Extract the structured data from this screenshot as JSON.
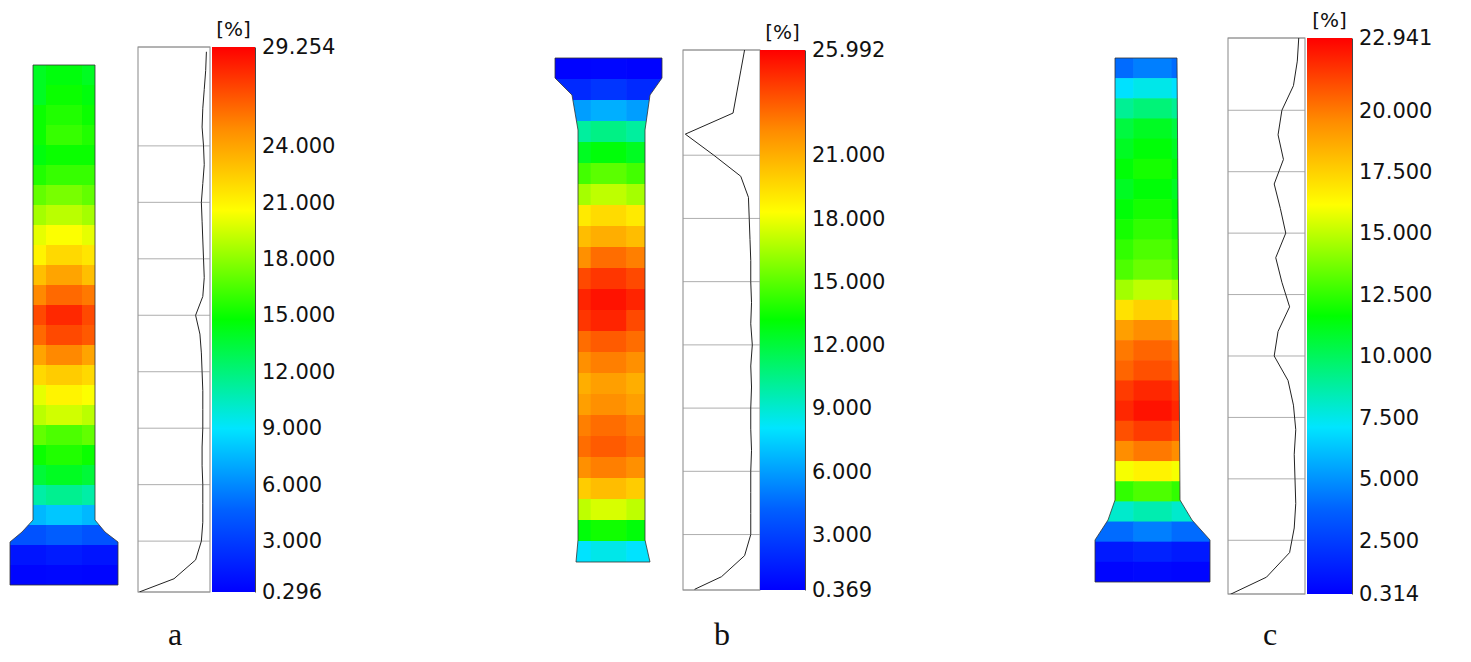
{
  "chart_data": [
    {
      "type": "heatmap",
      "panel": "a",
      "colorbar": {
        "title": "[%]",
        "range": [
          0.296,
          29.254
        ],
        "ticks": [
          {
            "value": 0.296,
            "label": "0.296"
          },
          {
            "value": 3,
            "label": "3.000"
          },
          {
            "value": 6,
            "label": "6.000"
          },
          {
            "value": 9,
            "label": "9.000"
          },
          {
            "value": 12,
            "label": "12.000"
          },
          {
            "value": 15,
            "label": "15.000"
          },
          {
            "value": 18,
            "label": "18.000"
          },
          {
            "value": 21,
            "label": "21.000"
          },
          {
            "value": 24,
            "label": "24.000"
          },
          {
            "value": 29.254,
            "label": "29.254"
          }
        ]
      },
      "cells": [
        [
          14,
          14.5,
          14
        ],
        [
          14,
          15,
          14.5
        ],
        [
          15,
          15.5,
          15
        ],
        [
          15,
          16,
          15.5
        ],
        [
          14.5,
          15,
          15
        ],
        [
          15.5,
          16,
          16
        ],
        [
          17,
          17.5,
          17
        ],
        [
          18.5,
          19,
          18.5
        ],
        [
          20,
          20.5,
          20
        ],
        [
          21,
          22,
          21.5
        ],
        [
          23,
          24,
          23
        ],
        [
          25,
          26,
          25.5
        ],
        [
          27,
          28,
          27
        ],
        [
          26,
          27,
          26.5
        ],
        [
          24,
          25,
          24
        ],
        [
          22,
          22.5,
          22
        ],
        [
          20,
          21,
          20.5
        ],
        [
          19,
          19.5,
          19
        ],
        [
          17,
          16.5,
          17
        ],
        [
          15,
          15.5,
          15
        ],
        [
          13.5,
          14,
          13.5
        ],
        [
          11,
          11.5,
          11
        ],
        [
          7.5,
          8,
          7.5
        ],
        [
          4,
          4.5,
          4
        ],
        [
          1.2,
          1.5,
          1.2
        ],
        [
          0.5,
          0.6,
          0.5
        ]
      ],
      "distribution": {
        "xlim": [
          0,
          100
        ],
        "strain": [
          29,
          28,
          27,
          26,
          25,
          24,
          23,
          22,
          21,
          20,
          19,
          18,
          17,
          16,
          15,
          14,
          13,
          12,
          11,
          10,
          9,
          8,
          7,
          6,
          5,
          4,
          3,
          2,
          1,
          0.3
        ],
        "share": [
          95,
          94,
          92,
          90,
          89,
          91,
          92,
          90,
          88,
          89,
          90,
          91,
          92,
          90,
          80,
          86,
          88,
          89,
          90,
          90,
          90,
          89,
          89,
          90,
          90,
          90,
          88,
          80,
          50,
          2
        ]
      }
    },
    {
      "type": "heatmap",
      "panel": "b",
      "colorbar": {
        "title": "[%]",
        "range": [
          0.369,
          25.992
        ],
        "ticks": [
          {
            "value": 0.369,
            "label": "0.369"
          },
          {
            "value": 3,
            "label": "3.000"
          },
          {
            "value": 6,
            "label": "6.000"
          },
          {
            "value": 9,
            "label": "9.000"
          },
          {
            "value": 12,
            "label": "12.000"
          },
          {
            "value": 15,
            "label": "15.000"
          },
          {
            "value": 18,
            "label": "18.000"
          },
          {
            "value": 21,
            "label": "21.000"
          },
          {
            "value": 25.992,
            "label": "25.992"
          }
        ]
      },
      "cells": [
        [
          0.5,
          0.6,
          0.5
        ],
        [
          2,
          2.5,
          2
        ],
        [
          6,
          6.5,
          6
        ],
        [
          10,
          10.5,
          10
        ],
        [
          12.5,
          13,
          12.5
        ],
        [
          14.5,
          15,
          14.5
        ],
        [
          16.5,
          17,
          16.5
        ],
        [
          19,
          19.5,
          19
        ],
        [
          20.5,
          21,
          20.5
        ],
        [
          22,
          23,
          22.5
        ],
        [
          24,
          24.5,
          24
        ],
        [
          25,
          25.5,
          25
        ],
        [
          24.5,
          25,
          24
        ],
        [
          23,
          23.5,
          23
        ],
        [
          22,
          22.5,
          22
        ],
        [
          21,
          21.5,
          21
        ],
        [
          21.5,
          22,
          21.5
        ],
        [
          22.5,
          23,
          22.5
        ],
        [
          23,
          23.5,
          23
        ],
        [
          22,
          22.5,
          22
        ],
        [
          20,
          20.5,
          20
        ],
        [
          17,
          17.5,
          17
        ],
        [
          13,
          13.5,
          13
        ],
        [
          8,
          8.5,
          8
        ]
      ],
      "distribution": {
        "xlim": [
          0,
          100
        ],
        "strain": [
          26,
          25,
          24,
          23,
          22,
          21,
          20,
          19,
          18,
          17,
          16,
          15,
          14,
          13,
          12,
          11,
          10,
          9,
          8,
          7,
          6,
          5,
          4,
          3,
          2,
          1,
          0.4
        ],
        "share": [
          80,
          75,
          70,
          65,
          3,
          40,
          75,
          85,
          86,
          87,
          88,
          88,
          89,
          88,
          90,
          88,
          89,
          88,
          88,
          89,
          88,
          88,
          88,
          88,
          80,
          50,
          15
        ]
      }
    },
    {
      "type": "heatmap",
      "panel": "c",
      "colorbar": {
        "title": "[%]",
        "range": [
          0.314,
          22.941
        ],
        "ticks": [
          {
            "value": 0.314,
            "label": "0.314"
          },
          {
            "value": 2.5,
            "label": "2.500"
          },
          {
            "value": 5,
            "label": "5.000"
          },
          {
            "value": 7.5,
            "label": "7.500"
          },
          {
            "value": 10,
            "label": "10.000"
          },
          {
            "value": 12.5,
            "label": "12.500"
          },
          {
            "value": 15,
            "label": "15.000"
          },
          {
            "value": 17.5,
            "label": "17.500"
          },
          {
            "value": 20,
            "label": "20.000"
          },
          {
            "value": 22.941,
            "label": "22.941"
          }
        ]
      },
      "cells": [
        [
          4,
          4.5,
          4
        ],
        [
          7,
          7.5,
          7
        ],
        [
          9,
          9.5,
          9
        ],
        [
          10.5,
          11,
          10.5
        ],
        [
          11,
          11.5,
          11
        ],
        [
          11.5,
          12,
          11.5
        ],
        [
          11,
          11.5,
          11
        ],
        [
          11.5,
          12,
          11.5
        ],
        [
          12,
          12.5,
          12
        ],
        [
          12.5,
          13,
          12.5
        ],
        [
          13,
          13.5,
          13
        ],
        [
          14.5,
          15,
          14.5
        ],
        [
          17,
          17.5,
          17
        ],
        [
          19,
          19.5,
          19
        ],
        [
          20,
          20.5,
          20
        ],
        [
          20.5,
          21,
          20.5
        ],
        [
          21.5,
          22,
          21.5
        ],
        [
          22,
          22.5,
          22
        ],
        [
          21,
          21.5,
          21
        ],
        [
          19.5,
          20,
          19.5
        ],
        [
          16,
          16.5,
          16
        ],
        [
          12.5,
          13,
          12.5
        ],
        [
          8,
          8.5,
          8
        ],
        [
          4,
          4.5,
          4
        ],
        [
          1.2,
          1.5,
          1.2
        ],
        [
          0.5,
          0.6,
          0.5
        ]
      ],
      "distribution": {
        "xlim": [
          0,
          100
        ],
        "strain": [
          23,
          22,
          21,
          20,
          19,
          18,
          17,
          16,
          15,
          14,
          13,
          12,
          11,
          10,
          9,
          8,
          7,
          6,
          5,
          4,
          3,
          2,
          1,
          0.3
        ],
        "share": [
          92,
          90,
          85,
          70,
          65,
          72,
          60,
          68,
          75,
          62,
          70,
          80,
          65,
          60,
          78,
          85,
          88,
          86,
          87,
          88,
          86,
          80,
          50,
          3
        ]
      }
    }
  ]
}
